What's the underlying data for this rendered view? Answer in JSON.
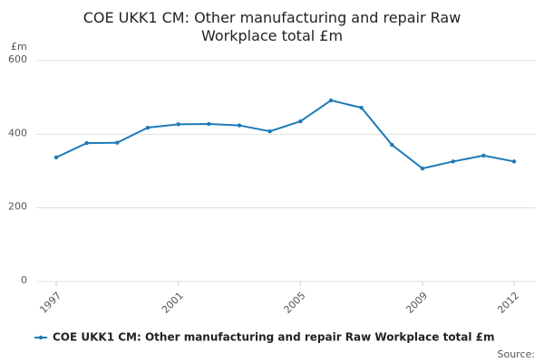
{
  "chart_data": {
    "type": "line",
    "title": "COE UKK1 CM: Other manufacturing and repair Raw Workplace total £m",
    "y_label": "£m",
    "source": "Source:",
    "x": [
      1997,
      1998,
      1999,
      2000,
      2001,
      2002,
      2003,
      2004,
      2005,
      2006,
      2007,
      2008,
      2009,
      2010,
      2011,
      2012
    ],
    "series": [
      {
        "name": "COE UKK1 CM: Other manufacturing and repair Raw Workplace total £m",
        "color": "#1f7ab8",
        "values": [
          337,
          376,
          377,
          418,
          427,
          428,
          424,
          408,
          435,
          492,
          472,
          371,
          307,
          326,
          342,
          326
        ]
      }
    ],
    "xlim": [
      1997,
      2012
    ],
    "xticks": [
      1997,
      2001,
      2005,
      2009,
      2012
    ],
    "ylim": [
      0,
      600
    ],
    "yticks": [
      0,
      200,
      400,
      600
    ],
    "grid": true
  }
}
